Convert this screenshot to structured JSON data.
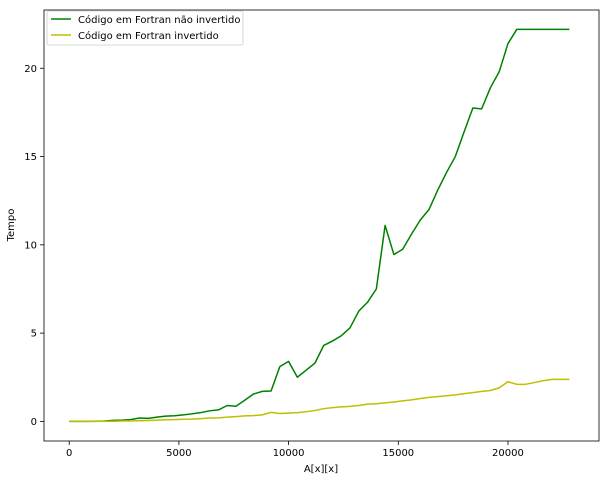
{
  "chart_data": {
    "type": "line",
    "title": "",
    "xlabel": "A[x][x]",
    "ylabel": "Tempo",
    "xlim": [
      -1150,
      24150
    ],
    "ylim": [
      -1.11,
      23.3
    ],
    "xticks": [
      0,
      5000,
      10000,
      15000,
      20000
    ],
    "xtick_labels": [
      "0",
      "5000",
      "10000",
      "15000",
      "20000"
    ],
    "yticks": [
      0,
      5,
      10,
      15,
      20
    ],
    "ytick_labels": [
      "0",
      "5",
      "10",
      "15",
      "20"
    ],
    "grid": false,
    "legend_position": "top-left",
    "series": [
      {
        "name": "Código em Fortran não invertido",
        "color": "#008000",
        "x": [
          0,
          400,
          800,
          1200,
          1600,
          2000,
          2400,
          2800,
          3200,
          3600,
          4000,
          4400,
          4800,
          5200,
          5600,
          6000,
          6400,
          6800,
          7200,
          7600,
          8000,
          8400,
          8800,
          9200,
          9600,
          10000,
          10400,
          10800,
          11200,
          11600,
          12000,
          12400,
          12800,
          13200,
          13600,
          14000,
          14400,
          14800,
          15200,
          15600,
          16000,
          16400,
          16800,
          17200,
          17600,
          18000,
          18400,
          18800,
          19200,
          19600,
          20000,
          20400,
          20800,
          21200,
          21600,
          22000,
          22400,
          22800
        ],
        "y": [
          0.0,
          0.0,
          0.0,
          0.01,
          0.02,
          0.06,
          0.07,
          0.1,
          0.19,
          0.17,
          0.24,
          0.3,
          0.32,
          0.37,
          0.43,
          0.5,
          0.6,
          0.65,
          0.9,
          0.86,
          1.2,
          1.55,
          1.7,
          1.72,
          3.1,
          3.4,
          2.5,
          2.9,
          3.3,
          4.3,
          4.55,
          4.85,
          5.3,
          6.25,
          6.75,
          7.5,
          11.1,
          9.45,
          9.75,
          10.6,
          11.4,
          12.0,
          13.1,
          14.1,
          15.0,
          16.4,
          17.75,
          17.7,
          18.9,
          19.8,
          21.4,
          22.2,
          22.2,
          22.2,
          22.2,
          22.2,
          22.2,
          22.2
        ]
      },
      {
        "name": "Código em Fortran invertido",
        "color": "#bfbf00",
        "x": [
          0,
          400,
          800,
          1200,
          1600,
          2000,
          2400,
          2800,
          3200,
          3600,
          4000,
          4400,
          4800,
          5200,
          5600,
          6000,
          6400,
          6800,
          7200,
          7600,
          8000,
          8400,
          8800,
          9200,
          9600,
          10000,
          10400,
          10800,
          11200,
          11600,
          12000,
          12400,
          12800,
          13200,
          13600,
          14000,
          14400,
          14800,
          15200,
          15600,
          16000,
          16400,
          16800,
          17200,
          17600,
          18000,
          18400,
          18800,
          19200,
          19600,
          20000,
          20400,
          20800,
          21200,
          21600,
          22000,
          22400,
          22800
        ],
        "y": [
          0.0,
          0.0,
          0.0,
          0.0,
          0.01,
          0.01,
          0.02,
          0.03,
          0.04,
          0.05,
          0.07,
          0.09,
          0.1,
          0.12,
          0.13,
          0.16,
          0.19,
          0.2,
          0.24,
          0.27,
          0.31,
          0.33,
          0.37,
          0.51,
          0.45,
          0.47,
          0.5,
          0.55,
          0.62,
          0.72,
          0.78,
          0.82,
          0.85,
          0.9,
          0.98,
          1.0,
          1.05,
          1.1,
          1.16,
          1.22,
          1.3,
          1.36,
          1.4,
          1.45,
          1.5,
          1.57,
          1.63,
          1.7,
          1.75,
          1.9,
          2.25,
          2.1,
          2.1,
          2.2,
          2.3,
          2.38,
          2.38,
          2.38
        ]
      }
    ]
  }
}
